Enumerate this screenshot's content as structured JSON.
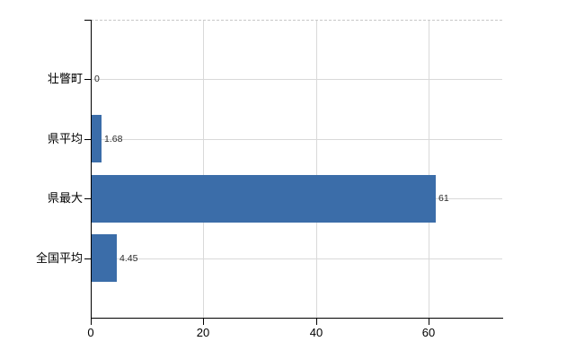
{
  "chart_data": {
    "type": "bar",
    "orientation": "horizontal",
    "title": "",
    "categories": [
      "壮瞥町",
      "県平均",
      "県最大",
      "全国平均"
    ],
    "values": [
      0,
      1.68,
      61,
      4.45
    ],
    "value_labels": [
      "0",
      "1.68",
      "61",
      "4.45"
    ],
    "x_tick_values": [
      0,
      20,
      40,
      60
    ],
    "x_tick_labels": [
      "0",
      "20",
      "40",
      "60"
    ],
    "xlim": [
      0,
      73
    ],
    "grid": "on",
    "legend": "none",
    "bar_color": "#3b6da9",
    "grid_color": "#d9d9d9",
    "top_border_color": "#c8c8c8",
    "axis_color": "#000000",
    "text_color": "#000000"
  }
}
